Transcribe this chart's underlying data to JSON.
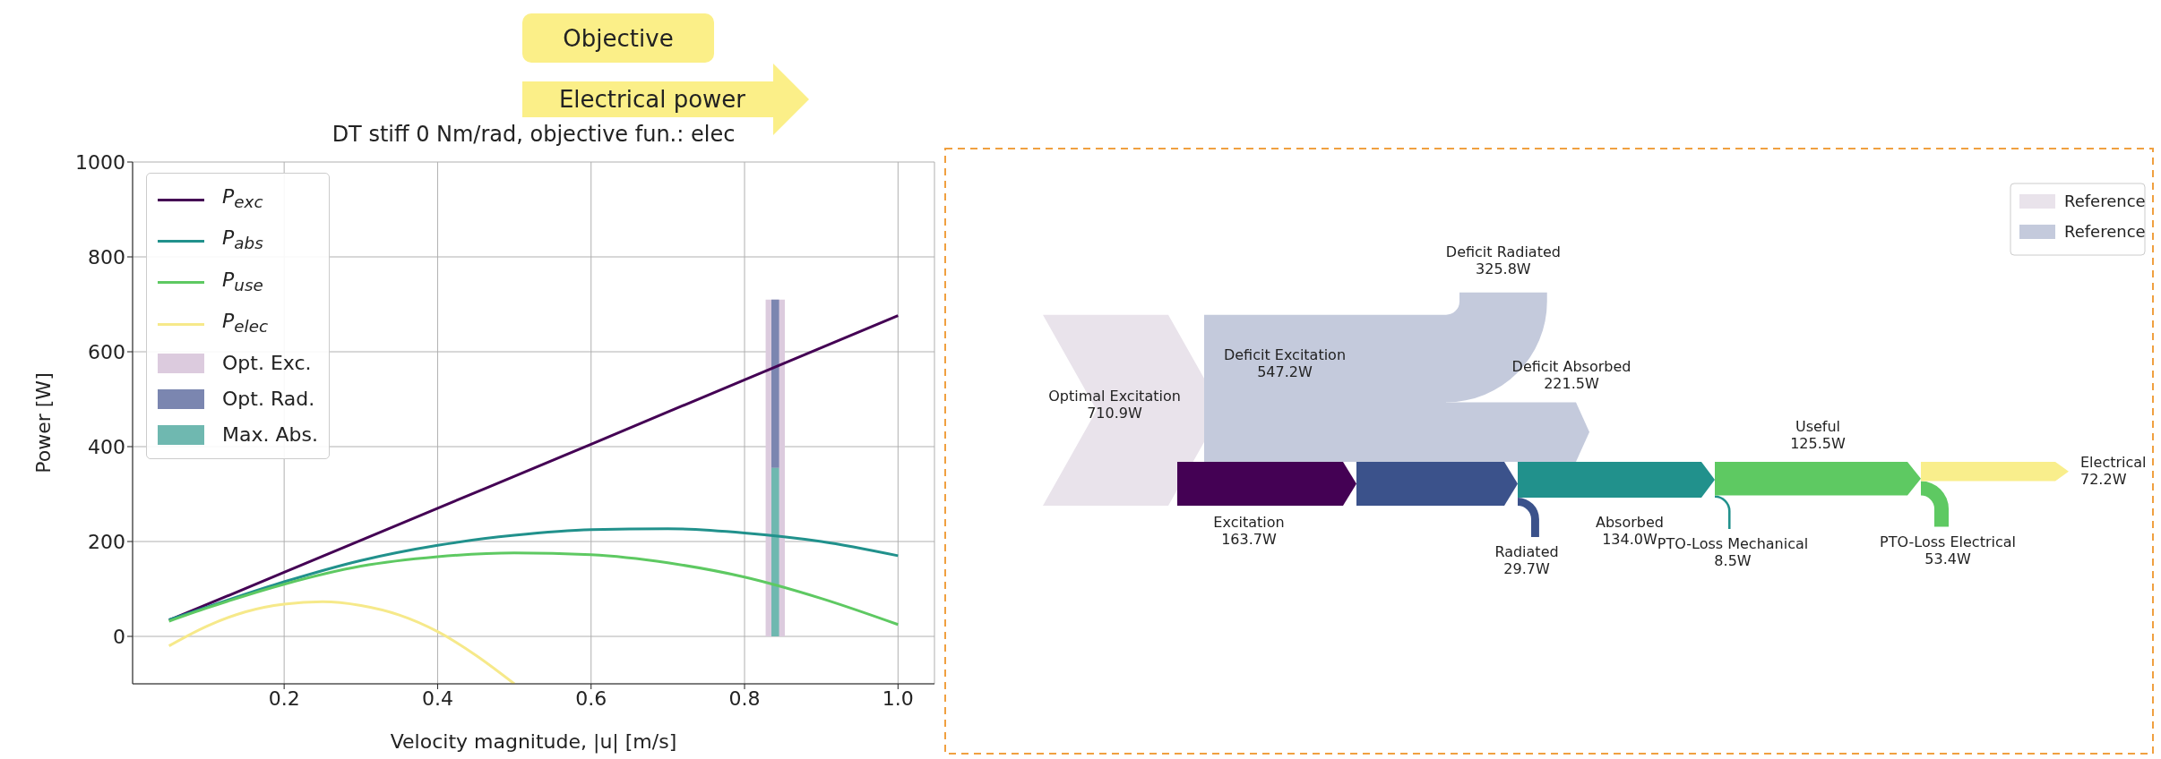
{
  "chart_data": [
    {
      "type": "line",
      "title": "DT stiff 0 Nm/rad, objective fun.: elec",
      "xlabel": "Velocity magnitude, |u| [m/s]",
      "ylabel": "Power [W]",
      "annotations": [
        "Objective",
        "Electrical power"
      ],
      "xlim": [
        0.0025,
        1.0475
      ],
      "xticks": [
        0.2,
        0.4,
        0.6,
        0.8,
        {
          "value": 1,
          "label": "1.0"
        }
      ],
      "ylim": [
        -100,
        1000
      ],
      "yticks": [
        0,
        200,
        400,
        600,
        800,
        1000
      ],
      "grid": true,
      "legend": "top left",
      "series": [
        {
          "name": "P$_{exc}$",
          "color": "#440154",
          "x": [
            0.05,
            0.2,
            0.4,
            0.6,
            0.8,
            1.0
          ],
          "values": [
            34,
            135,
            270,
            405,
            541,
            676
          ]
        },
        {
          "name": "P$_{abs}$",
          "color": "#21918c",
          "x": [
            0.05,
            0.1,
            0.2,
            0.3,
            0.4,
            0.5,
            0.6,
            0.7,
            0.8,
            0.9,
            1.0
          ],
          "values": [
            35,
            62,
            115,
            160,
            192,
            213,
            225,
            227,
            218,
            200,
            170
          ]
        },
        {
          "name": "P$_{use}$",
          "color": "#5ec962",
          "x": [
            0.05,
            0.1,
            0.2,
            0.3,
            0.4,
            0.5,
            0.6,
            0.7,
            0.8,
            0.9,
            1.0
          ],
          "values": [
            32,
            60,
            110,
            148,
            168,
            176,
            172,
            155,
            125,
            80,
            25
          ]
        },
        {
          "name": "P$_{elec}$",
          "color": "#f6e98a",
          "x": [
            0.05,
            0.1,
            0.15,
            0.2,
            0.25,
            0.3,
            0.35,
            0.4,
            0.45,
            0.5
          ],
          "values": [
            -20,
            22,
            52,
            68,
            73,
            65,
            45,
            10,
            -40,
            -100
          ]
        },
        {
          "type": "bar",
          "name": "Opt. Exc.",
          "color": "#dccbde",
          "x": [
            0.84
          ],
          "base": [
            0
          ],
          "values": [
            710
          ]
        },
        {
          "type": "bar",
          "name": "Opt. Rad.",
          "color": "#7b86b0",
          "x": [
            0.84
          ],
          "base": [
            355
          ],
          "values": [
            355
          ]
        },
        {
          "type": "bar",
          "name": "Max. Abs.",
          "color": "#6fb8b0",
          "x": [
            0.84
          ],
          "base": [
            0
          ],
          "values": [
            355
          ]
        }
      ]
    },
    {
      "type": "other",
      "legend": "top right",
      "categories": [
        "Optimal Excitation",
        "Deficit Excitation",
        "Deficit Radiated",
        "Deficit Absorbed",
        "Excitation",
        "Radiated",
        "Absorbed",
        "PTO-Loss Mechanical",
        "Useful",
        "PTO-Loss Electrical",
        "Electrical"
      ],
      "series": [
        {
          "name": "Reference",
          "color": "#e9e3eb",
          "values": [
            710.9,
            null,
            null,
            null,
            null,
            null,
            null,
            null,
            null,
            null,
            null
          ],
          "value_labels": [
            "710.9W",
            null,
            null,
            null,
            null,
            null,
            null,
            null,
            null,
            null,
            null
          ]
        },
        {
          "name": "Reference",
          "color": "#c4cadc",
          "values": [
            null,
            547.2,
            325.8,
            221.5,
            null,
            null,
            null,
            null,
            null,
            null,
            null
          ],
          "value_labels": [
            null,
            "547.2W",
            "325.8W",
            "221.5W",
            null,
            null,
            null,
            null,
            null,
            null,
            null
          ]
        },
        {
          "colors": [
            null,
            null,
            null,
            null,
            "#440154",
            "#3b528b",
            "#21918c",
            "#21918c",
            "#5ec962",
            "#5ec962",
            "#f9ee8c"
          ],
          "values": [
            null,
            null,
            null,
            null,
            163.7,
            29.7,
            134.0,
            8.5,
            125.5,
            53.4,
            72.2
          ],
          "value_labels": [
            null,
            null,
            null,
            null,
            "163.7W",
            "29.7W",
            "134.0W",
            "8.5W",
            "125.5W",
            "53.4W",
            "72.2W"
          ]
        }
      ]
    }
  ]
}
